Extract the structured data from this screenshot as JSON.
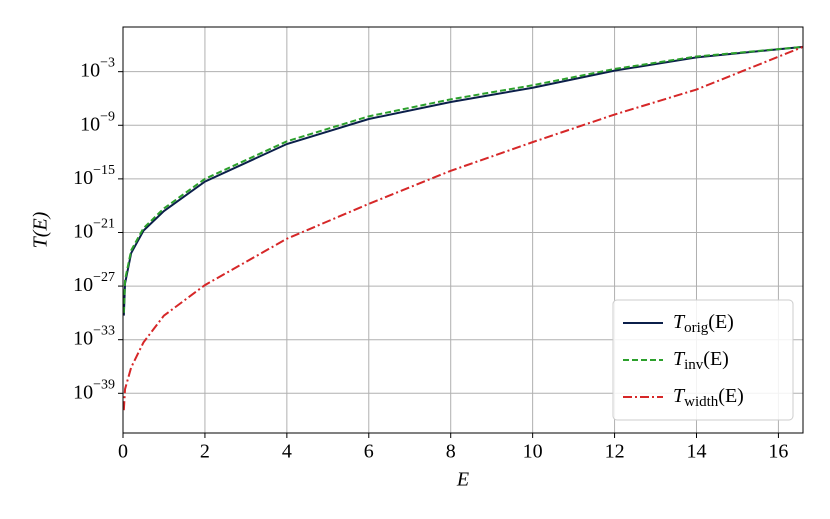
{
  "chart_data": {
    "type": "line",
    "x_label": "E",
    "y_label": "T(E)",
    "log_y": true,
    "grid": true,
    "legend": "lower right",
    "xlim": [
      0,
      16.6
    ],
    "xticks": [
      0,
      2,
      4,
      6,
      8,
      10,
      12,
      14,
      16
    ],
    "ylim": [
      3.6e-44,
      100
    ],
    "yticks": [
      {
        "value": 0.001,
        "label": "10^−3"
      },
      {
        "value": 1e-09,
        "label": "10^−9"
      },
      {
        "value": 1e-15,
        "label": "10^−15"
      },
      {
        "value": 1e-21,
        "label": "10^−21"
      },
      {
        "value": 1e-27,
        "label": "10^−27"
      },
      {
        "value": 1e-33,
        "label": "10^−33"
      },
      {
        "value": 1e-39,
        "label": "10^−39"
      }
    ],
    "x": [
      0.02,
      0.05,
      0.2,
      0.5,
      1,
      2,
      4,
      6,
      8,
      10,
      12,
      14,
      16.6
    ],
    "series": [
      {
        "name": "T_orig(E)",
        "color": "#0b1f4a",
        "dash": "solid",
        "values": [
          5e-31,
          2e-27,
          5e-24,
          1.6e-21,
          2.5e-19,
          5e-16,
          8e-12,
          5e-09,
          4e-07,
          1.6e-05,
          0.0013,
          0.04,
          0.6
        ]
      },
      {
        "name": "T_inv(E)",
        "color": "#2ca02c",
        "dash": "dashed",
        "values": [
          1e-30,
          5e-27,
          1e-23,
          3e-21,
          5e-19,
          1e-15,
          1.6e-11,
          1e-08,
          8e-07,
          3e-05,
          0.002,
          0.05,
          0.6
        ]
      },
      {
        "name": "T_width(E)",
        "color": "#d62728",
        "dash": "dashdot",
        "values": [
          1.3e-41,
          3e-39,
          8e-37,
          5e-34,
          5e-31,
          1.3e-27,
          2e-22,
          1.6e-18,
          8e-15,
          1.3e-11,
          1.6e-08,
          1e-05,
          0.6
        ]
      }
    ]
  }
}
